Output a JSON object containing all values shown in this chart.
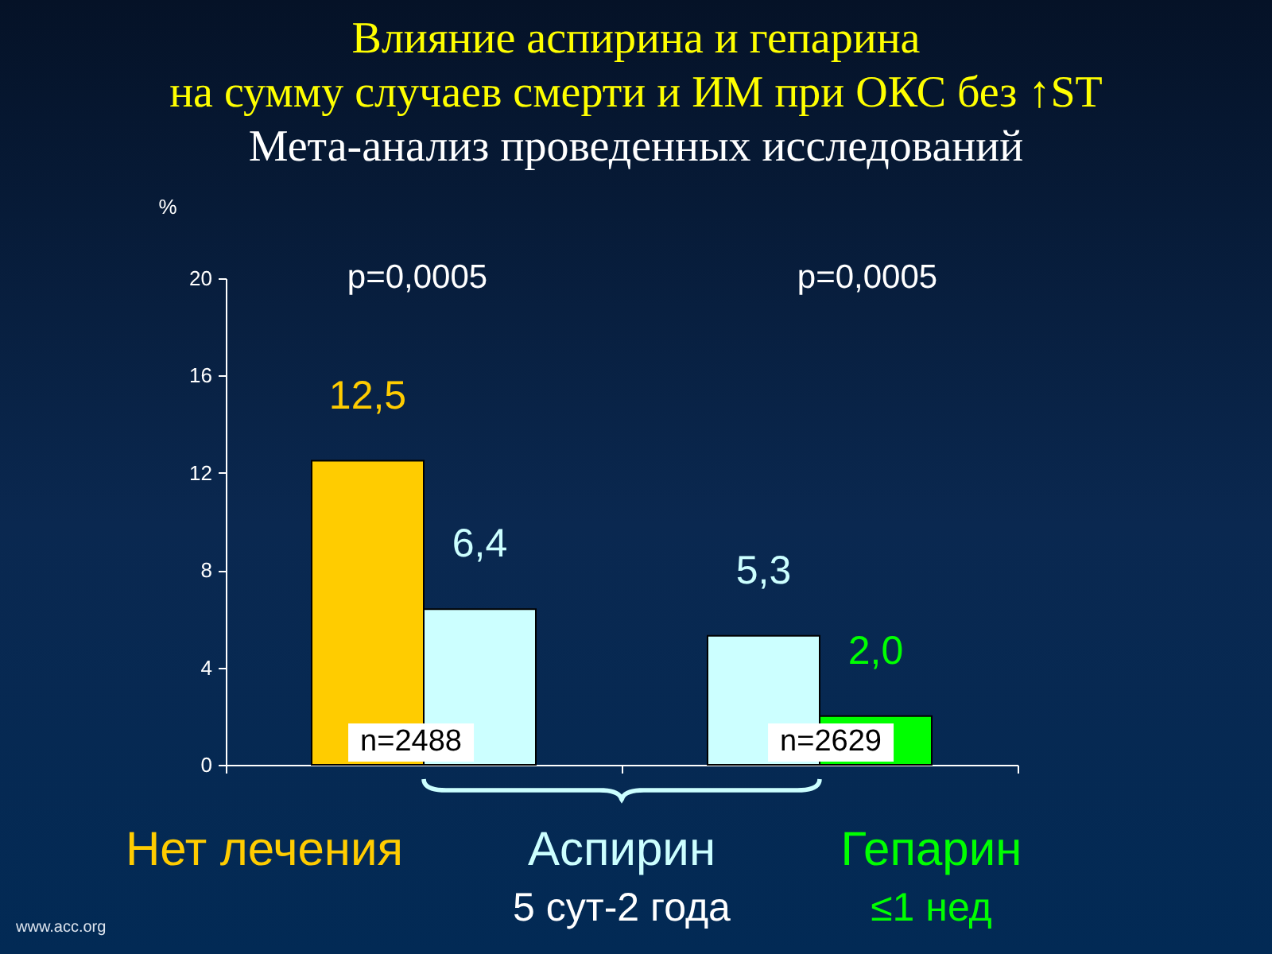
{
  "chart_data": {
    "type": "bar",
    "title": "Влияние аспирина и гепарина\nна сумму случаев смерти и ИМ при ОКС без ↑ST",
    "subtitle": "Мета-анализ проведенных исследований",
    "ylabel": "%",
    "categories": [
      null,
      null
    ],
    "series": [
      {
        "name": "Нет лечения",
        "color": "#ffcc00",
        "values": [
          12.5,
          null
        ],
        "value_labels": [
          "12,5",
          null
        ]
      },
      {
        "name": "Аспирин",
        "color": "#ccffff",
        "values": [
          6.4,
          5.3
        ],
        "value_labels": [
          "6,4",
          "5,3"
        ]
      },
      {
        "name": "Гепарин",
        "color": "#00ff00",
        "values": [
          null,
          2.0
        ],
        "value_labels": [
          null,
          "2,0"
        ]
      }
    ],
    "ylim": [
      0,
      20
    ],
    "yticks": [
      0,
      4,
      8,
      12,
      16,
      20
    ],
    "legend": "bottom",
    "annotations": [
      "p=0,0005",
      "p=0,0005",
      "n=2488",
      "n=2629",
      "5 сут-2 года",
      "≤1 нед",
      "www.acc.org"
    ]
  }
}
